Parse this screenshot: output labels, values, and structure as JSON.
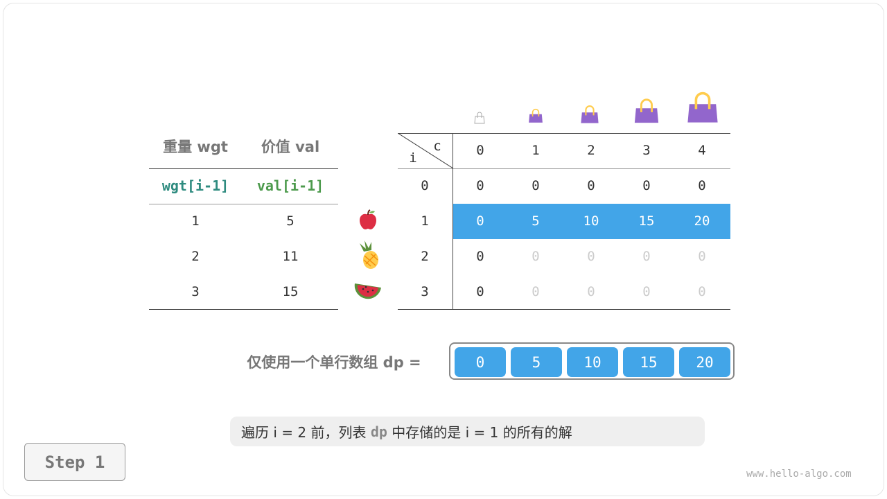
{
  "items_table": {
    "headers": [
      "重量 wgt",
      "价值 val"
    ],
    "subheaders": [
      "wgt[i-1]",
      "val[i-1]"
    ],
    "rows": [
      {
        "wgt": "1",
        "val": "5",
        "fruit": "apple-icon"
      },
      {
        "wgt": "2",
        "val": "11",
        "fruit": "pineapple-icon"
      },
      {
        "wgt": "3",
        "val": "15",
        "fruit": "watermelon-icon"
      }
    ],
    "colors": {
      "wgt": "#2e8b7f",
      "val": "#4c9a4c"
    }
  },
  "dp_table": {
    "corner_c": "c",
    "corner_i": "i",
    "cols": [
      "0",
      "1",
      "2",
      "3",
      "4"
    ],
    "row_labels": [
      "0",
      "1",
      "2",
      "3"
    ],
    "cells": [
      [
        "0",
        "0",
        "0",
        "0",
        "0"
      ],
      [
        "0",
        "5",
        "10",
        "15",
        "20"
      ],
      [
        "0",
        "0",
        "0",
        "0",
        "0"
      ],
      [
        "0",
        "0",
        "0",
        "0",
        "0"
      ]
    ],
    "highlight_row": 1,
    "highlight_color": "#42a5e8",
    "capacity_icon": "bag-icon"
  },
  "dp_array": {
    "label": "仅使用一个单行数组 dp =",
    "values": [
      "0",
      "5",
      "10",
      "15",
      "20"
    ]
  },
  "note": {
    "p1": "遍历 i = 2 前，列表 ",
    "dp": "dp",
    "p2": " 中存储的是 i = 1 的所有的解"
  },
  "step": "Step 1",
  "watermark": "www.hello-algo.com"
}
